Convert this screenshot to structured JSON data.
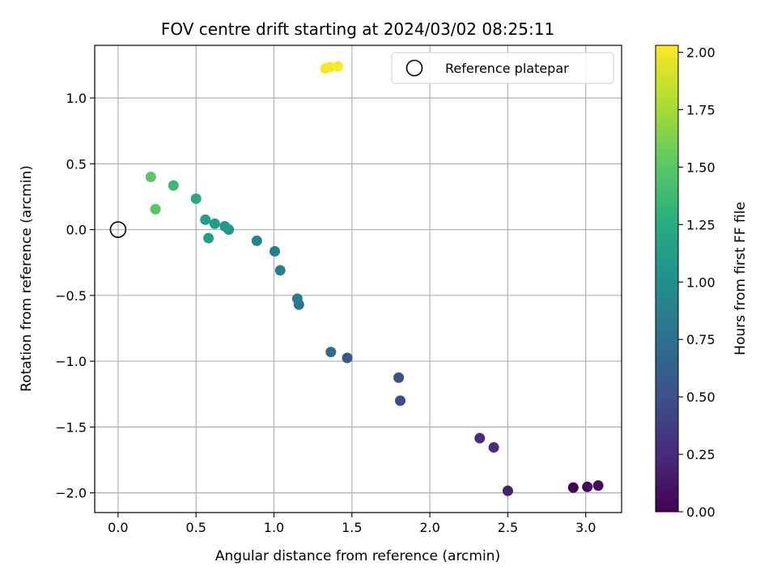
{
  "chart_data": {
    "type": "scatter",
    "title": "FOV centre drift starting at 2024/03/02 08:25:11",
    "xlabel": "Angular distance from reference (arcmin)",
    "ylabel": "Rotation from reference (arcmin)",
    "xlim": [
      -0.15,
      3.23
    ],
    "ylim": [
      -2.15,
      1.4
    ],
    "xticks": [
      0.0,
      0.5,
      1.0,
      1.5,
      2.0,
      2.5,
      3.0
    ],
    "xtick_labels": [
      "0.0",
      "0.5",
      "1.0",
      "1.5",
      "2.0",
      "2.5",
      "3.0"
    ],
    "yticks": [
      -2.0,
      -1.5,
      -1.0,
      -0.5,
      0.0,
      0.5,
      1.0
    ],
    "ytick_labels": [
      "−2.0",
      "−1.5",
      "−1.0",
      "−0.5",
      "0.0",
      "0.5",
      "1.0"
    ],
    "grid": true,
    "legend": {
      "position": "top-right",
      "entries": [
        "Reference platepar"
      ]
    },
    "colorbar": {
      "label": "Hours from first FF file",
      "colormap": "viridis",
      "range": [
        0.0,
        2.03
      ],
      "ticks": [
        0.0,
        0.25,
        0.5,
        0.75,
        1.0,
        1.25,
        1.5,
        1.75,
        2.0
      ],
      "tick_labels": [
        "0.00",
        "0.25",
        "0.50",
        "0.75",
        "1.00",
        "1.25",
        "1.50",
        "1.75",
        "2.00"
      ]
    },
    "reference_point": {
      "x": 0.0,
      "y": 0.0
    },
    "points": [
      {
        "x": 2.92,
        "y": -1.96,
        "c": 0.0
      },
      {
        "x": 3.01,
        "y": -1.955,
        "c": 0.03
      },
      {
        "x": 3.08,
        "y": -1.945,
        "c": 0.05
      },
      {
        "x": 2.5,
        "y": -1.985,
        "c": 0.18
      },
      {
        "x": 2.32,
        "y": -1.585,
        "c": 0.25
      },
      {
        "x": 2.41,
        "y": -1.655,
        "c": 0.27
      },
      {
        "x": 1.81,
        "y": -1.3,
        "c": 0.48
      },
      {
        "x": 1.8,
        "y": -1.125,
        "c": 0.5
      },
      {
        "x": 1.47,
        "y": -0.975,
        "c": 0.55
      },
      {
        "x": 1.365,
        "y": -0.93,
        "c": 0.72
      },
      {
        "x": 1.16,
        "y": -0.57,
        "c": 0.8
      },
      {
        "x": 1.15,
        "y": -0.525,
        "c": 0.82
      },
      {
        "x": 1.04,
        "y": -0.31,
        "c": 0.86
      },
      {
        "x": 1.005,
        "y": -0.165,
        "c": 0.88
      },
      {
        "x": 0.89,
        "y": -0.085,
        "c": 0.92
      },
      {
        "x": 0.71,
        "y": 0.0,
        "c": 1.08
      },
      {
        "x": 0.685,
        "y": 0.025,
        "c": 1.1
      },
      {
        "x": 0.62,
        "y": 0.045,
        "c": 1.12
      },
      {
        "x": 0.58,
        "y": -0.065,
        "c": 1.14
      },
      {
        "x": 0.56,
        "y": 0.075,
        "c": 1.15
      },
      {
        "x": 0.5,
        "y": 0.235,
        "c": 1.22
      },
      {
        "x": 0.355,
        "y": 0.335,
        "c": 1.38
      },
      {
        "x": 0.24,
        "y": 0.155,
        "c": 1.48
      },
      {
        "x": 0.21,
        "y": 0.4,
        "c": 1.5
      },
      {
        "x": 1.33,
        "y": 1.225,
        "c": 2.0
      },
      {
        "x": 1.36,
        "y": 1.235,
        "c": 2.01
      },
      {
        "x": 1.41,
        "y": 1.24,
        "c": 2.02
      }
    ]
  }
}
